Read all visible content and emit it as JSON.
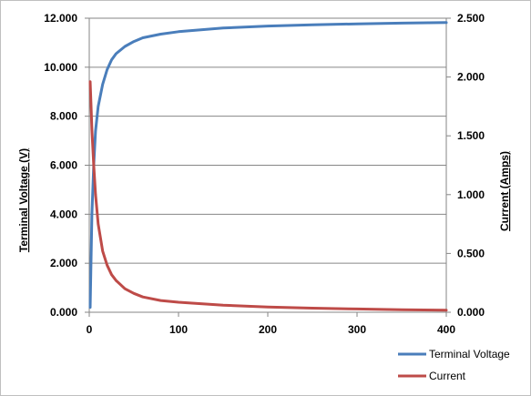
{
  "chart_data": {
    "type": "line",
    "title": "",
    "xlabel": "",
    "ylabel_left": "Terminal Voltage (V)",
    "ylabel_right": "Current (Amps)",
    "xlim": [
      0,
      400
    ],
    "ylim_left": [
      0,
      12
    ],
    "ylim_right": [
      0,
      2.5
    ],
    "x_ticks": [
      "0",
      "100",
      "200",
      "300",
      "400"
    ],
    "y_left_ticks": [
      "0.000",
      "2.000",
      "4.000",
      "6.000",
      "8.000",
      "10.000",
      "12.000"
    ],
    "y_right_ticks": [
      "0.000",
      "0.500",
      "1.000",
      "1.500",
      "2.000",
      "2.500"
    ],
    "grid": "horizontal",
    "legend_position": "bottom-right",
    "x": [
      1,
      2,
      3,
      5,
      7,
      10,
      15,
      20,
      25,
      30,
      40,
      50,
      60,
      80,
      100,
      150,
      200,
      250,
      300,
      350,
      400
    ],
    "series": [
      {
        "name": "Terminal Voltage",
        "axis": "left",
        "color": "#4a7ebb",
        "values": [
          0.2,
          2.2,
          4.0,
          6.0,
          7.4,
          8.4,
          9.3,
          9.9,
          10.3,
          10.55,
          10.85,
          11.05,
          11.2,
          11.35,
          11.45,
          11.6,
          11.68,
          11.73,
          11.77,
          11.8,
          11.82
        ]
      },
      {
        "name": "Current",
        "axis": "right",
        "color": "#be4b48",
        "values": [
          1.96,
          1.75,
          1.55,
          1.25,
          1.0,
          0.75,
          0.52,
          0.4,
          0.32,
          0.27,
          0.2,
          0.16,
          0.13,
          0.1,
          0.085,
          0.06,
          0.045,
          0.035,
          0.028,
          0.022,
          0.018
        ]
      }
    ]
  }
}
